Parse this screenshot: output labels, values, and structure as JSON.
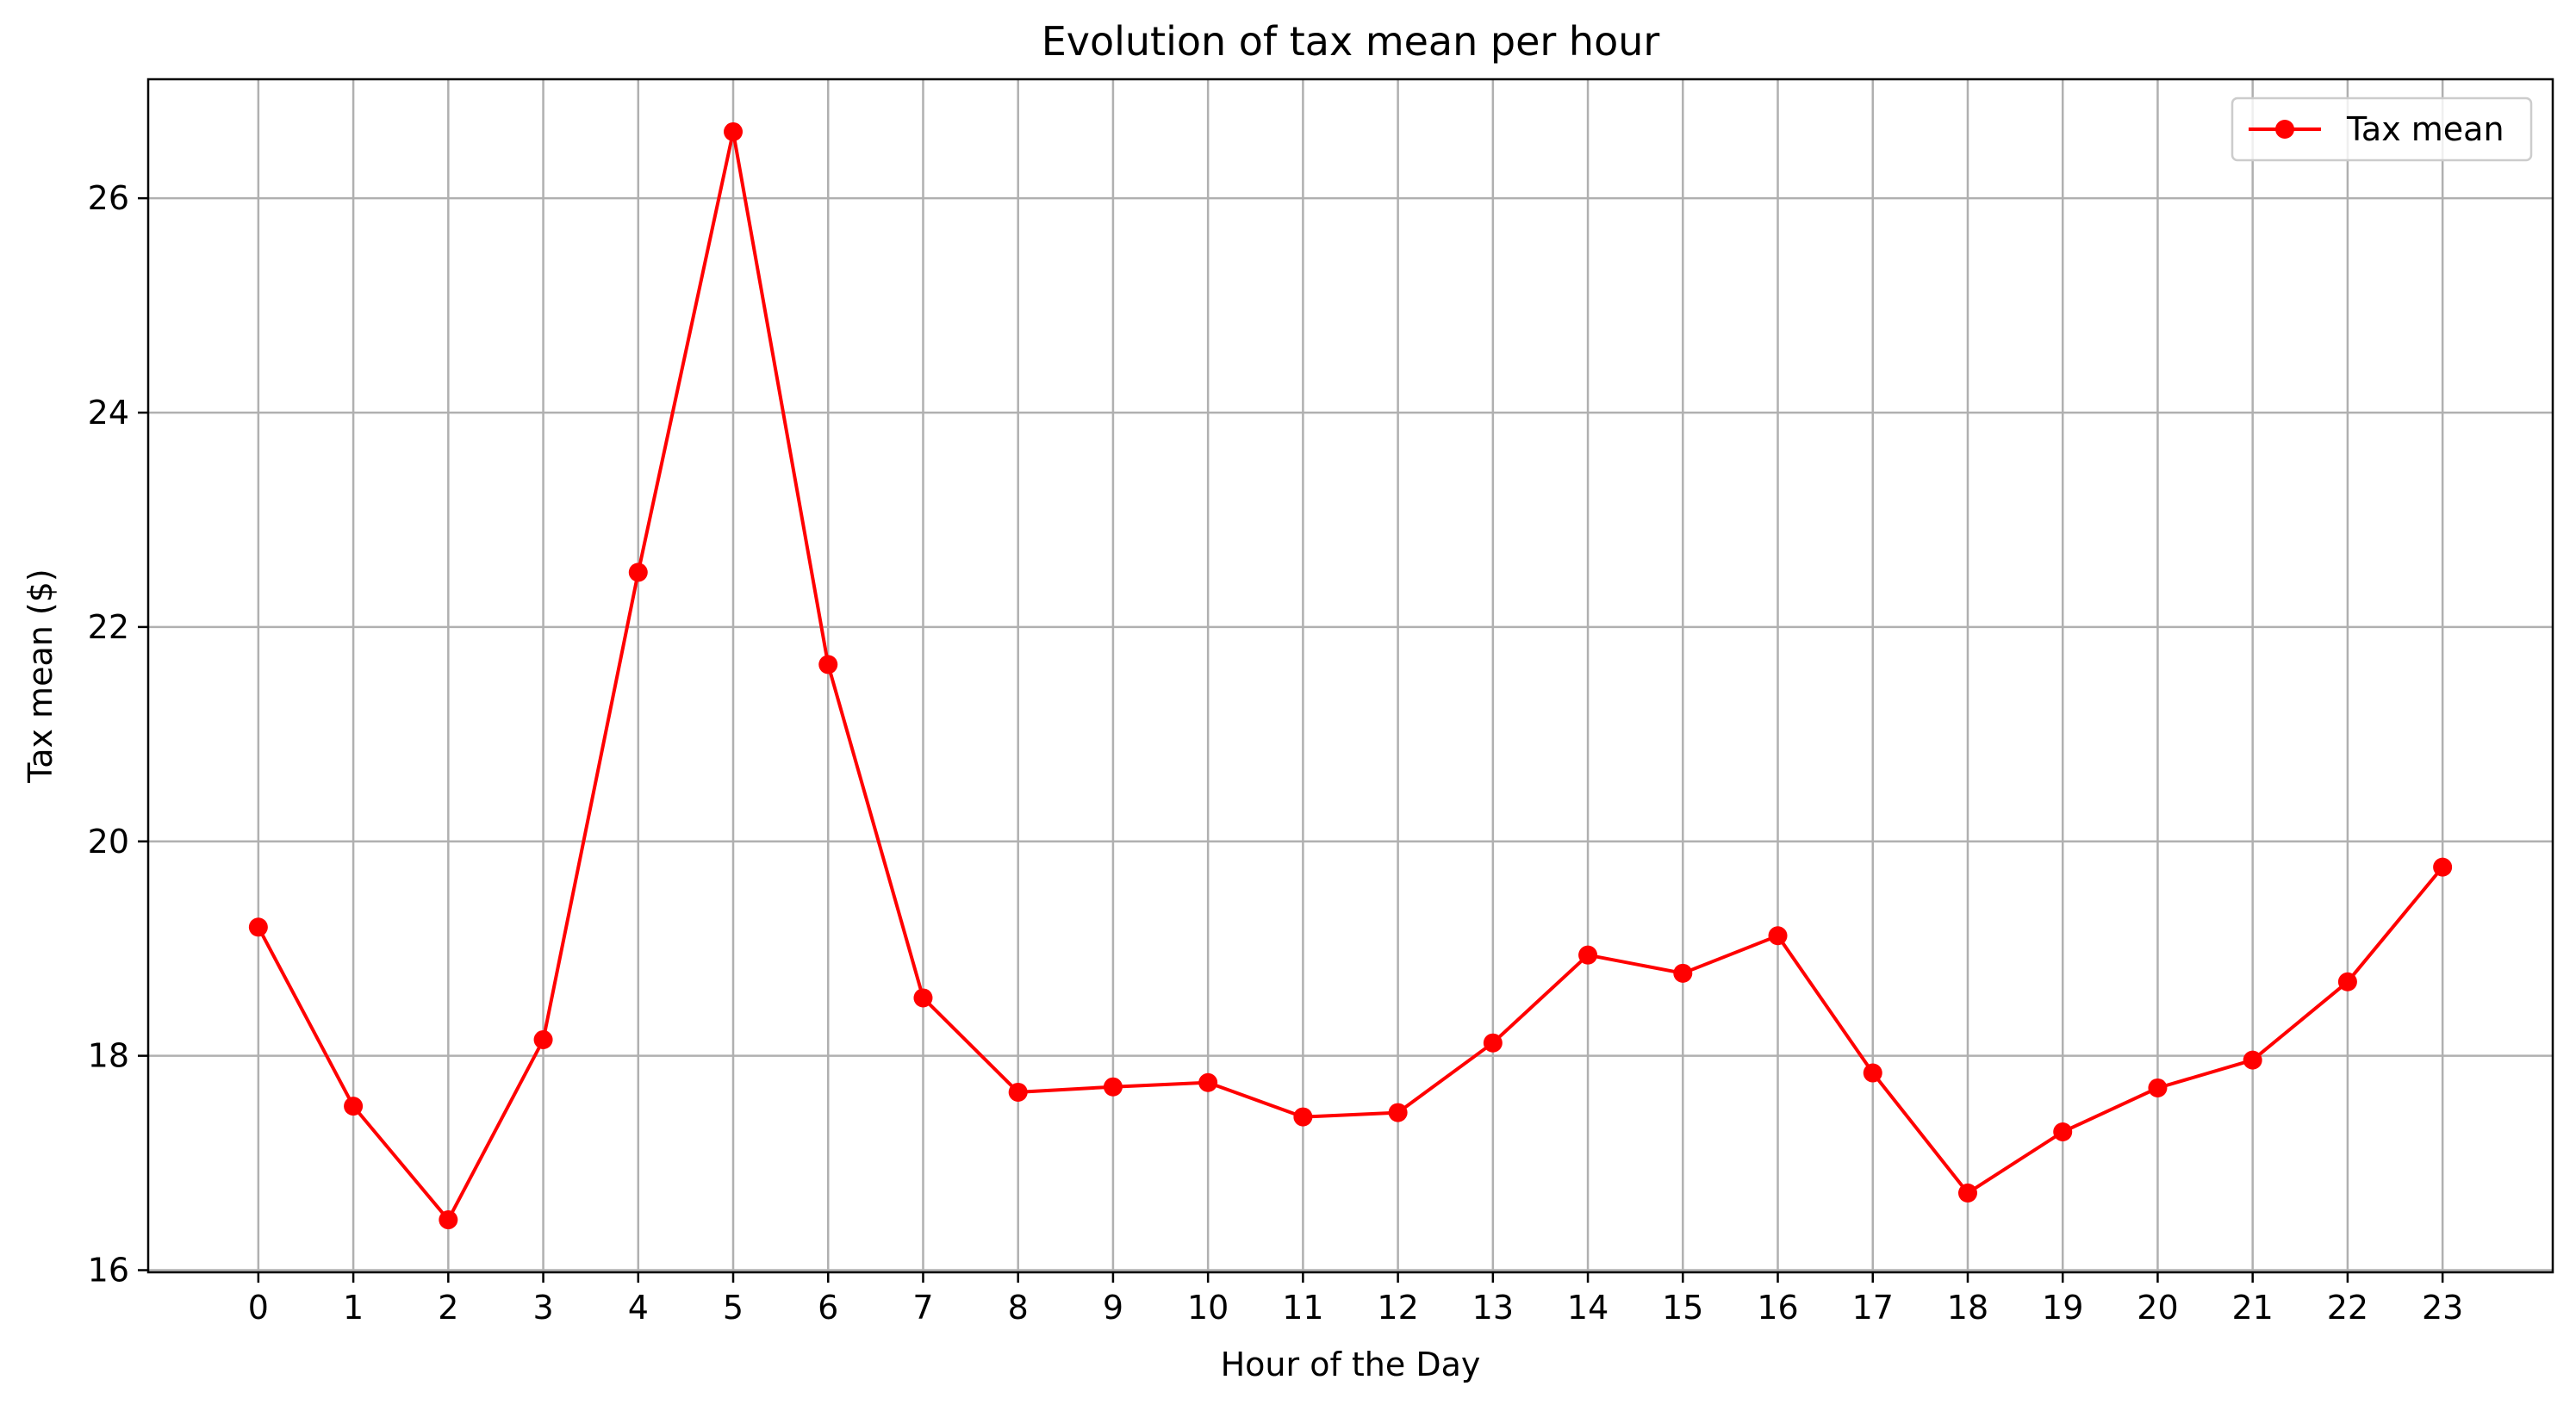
{
  "chart_data": {
    "type": "line",
    "title": "Evolution of tax mean per hour",
    "xlabel": "Hour of the Day",
    "ylabel": "Tax mean ($)",
    "x": [
      0,
      1,
      2,
      3,
      4,
      5,
      6,
      7,
      8,
      9,
      10,
      11,
      12,
      13,
      14,
      15,
      16,
      17,
      18,
      19,
      20,
      21,
      22,
      23
    ],
    "x_tick_labels": [
      "0",
      "1",
      "2",
      "3",
      "4",
      "5",
      "6",
      "7",
      "8",
      "9",
      "10",
      "11",
      "12",
      "13",
      "14",
      "15",
      "16",
      "17",
      "18",
      "19",
      "20",
      "21",
      "22",
      "23"
    ],
    "y_ticks": [
      16,
      18,
      20,
      22,
      24,
      26
    ],
    "y_tick_labels": [
      "16",
      "18",
      "20",
      "22",
      "24",
      "26"
    ],
    "xlim": [
      -1.16,
      24.16
    ],
    "ylim": [
      15.98,
      27.11
    ],
    "grid": true,
    "legend_position": "top-right",
    "series": [
      {
        "name": "Tax mean",
        "color": "#ff0000",
        "marker": "circle",
        "values": [
          19.2,
          17.53,
          16.47,
          18.15,
          22.51,
          26.62,
          21.65,
          18.54,
          17.66,
          17.71,
          17.75,
          17.43,
          17.47,
          18.12,
          18.94,
          18.77,
          19.12,
          17.84,
          16.72,
          17.29,
          17.7,
          17.96,
          18.69,
          19.76
        ]
      }
    ]
  }
}
